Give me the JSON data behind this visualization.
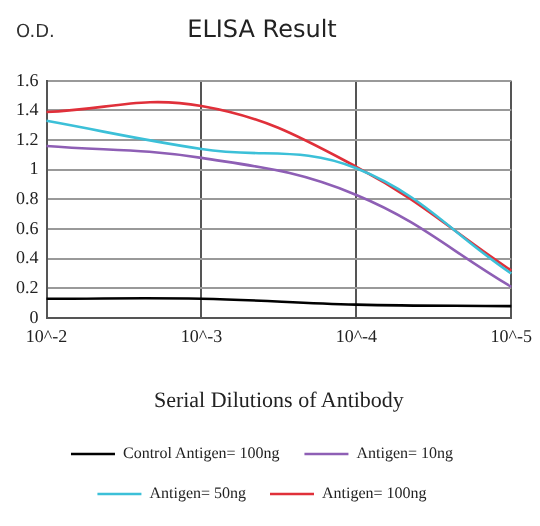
{
  "chart_data": {
    "type": "line",
    "title": "ELISA Result",
    "ylabel": "O.D.",
    "xlabel": "Serial Dilutions of Antibody",
    "categories": [
      "10^-2",
      "10^-3",
      "10^-4",
      "10^-5"
    ],
    "series": [
      {
        "name": "Control Antigen= 100ng",
        "color": "#000000",
        "values": [
          0.13,
          0.13,
          0.09,
          0.08
        ]
      },
      {
        "name": "Antigen= 10ng",
        "color": "#8e5fb5",
        "values": [
          1.16,
          1.08,
          0.83,
          0.21
        ]
      },
      {
        "name": "Antigen= 50ng",
        "color": "#3cc0d8",
        "values": [
          1.33,
          1.14,
          1.01,
          0.3
        ]
      },
      {
        "name": "Antigen= 100ng",
        "color": "#e0303a",
        "values": [
          1.39,
          1.43,
          1.02,
          0.32
        ]
      }
    ],
    "ylim": [
      0,
      1.6
    ],
    "yticks": [
      0,
      0.2,
      0.4,
      0.6,
      0.8,
      1,
      1.2,
      1.4,
      1.6
    ],
    "grid": true,
    "legend": "bottom",
    "marker": "none",
    "line_style": "solid"
  }
}
